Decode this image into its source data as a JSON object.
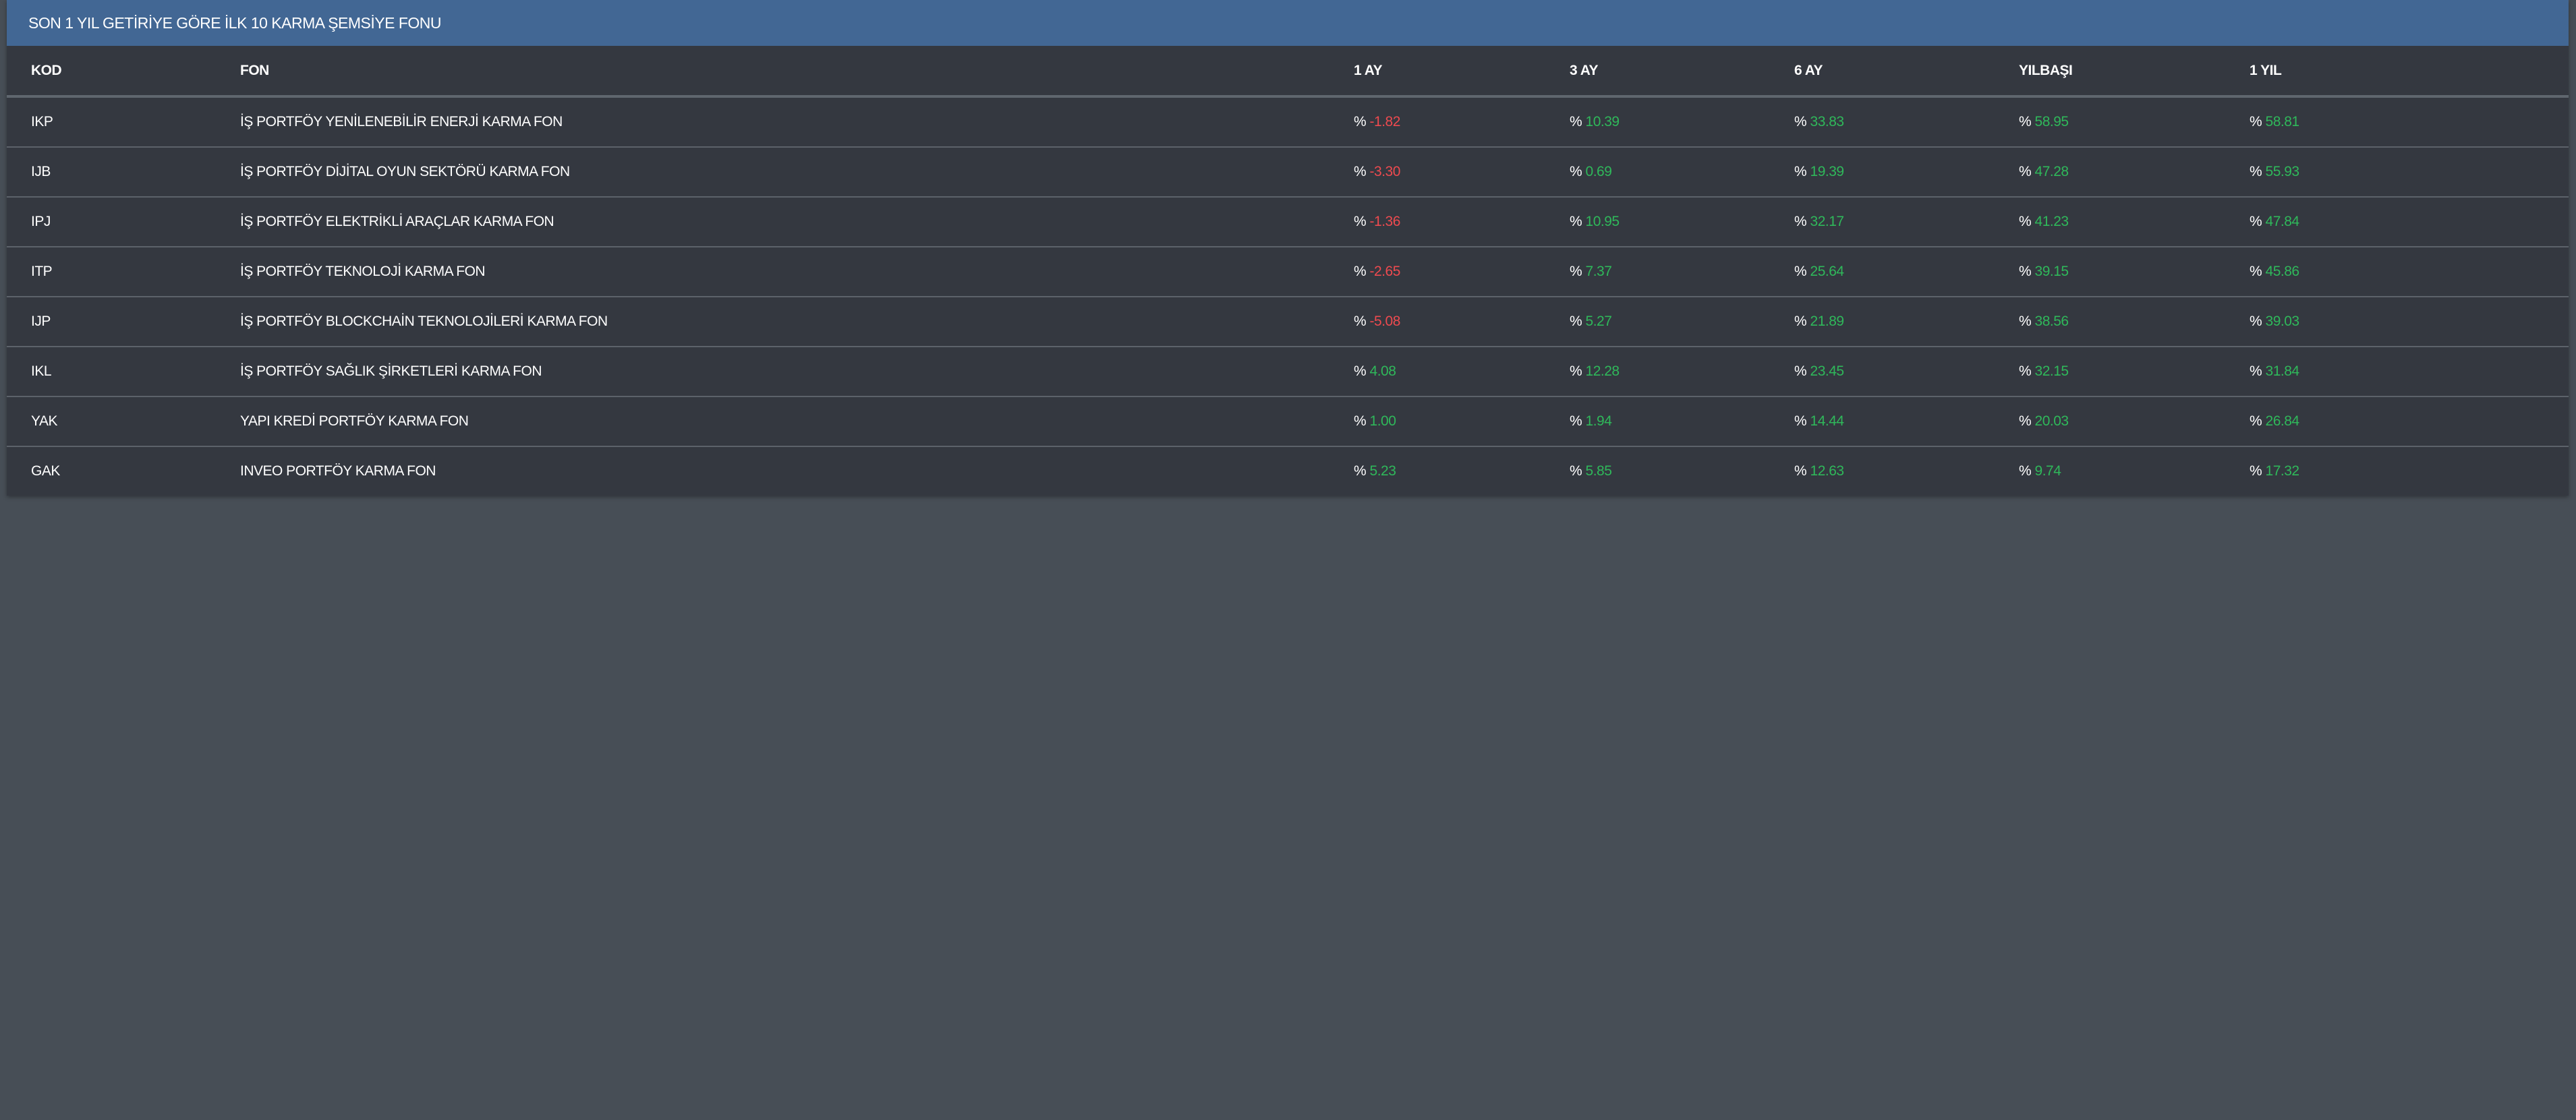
{
  "title": "SON 1 YIL GETİRİYE GÖRE İLK 10 KARMA ŞEMSİYE FONU",
  "columns": [
    "KOD",
    "FON",
    "1 AY",
    "3 AY",
    "6 AY",
    "YILBAŞI",
    "1 YIL"
  ],
  "percent_symbol": "%",
  "colors": {
    "header_bg": "#426794",
    "positive": "#2fb85a",
    "negative": "#ee4a4f"
  },
  "rows": [
    {
      "kod": "IKP",
      "fon": "İŞ PORTFÖY YENİLENEBİLİR ENERJİ KARMA FON",
      "values": [
        "-1.82",
        "10.39",
        "33.83",
        "58.95",
        "58.81"
      ]
    },
    {
      "kod": "IJB",
      "fon": "İŞ PORTFÖY DİJİTAL OYUN SEKTÖRÜ KARMA FON",
      "values": [
        "-3.30",
        "0.69",
        "19.39",
        "47.28",
        "55.93"
      ]
    },
    {
      "kod": "IPJ",
      "fon": "İŞ PORTFÖY ELEKTRİKLİ ARAÇLAR KARMA FON",
      "values": [
        "-1.36",
        "10.95",
        "32.17",
        "41.23",
        "47.84"
      ]
    },
    {
      "kod": "ITP",
      "fon": "İŞ PORTFÖY TEKNOLOJİ KARMA FON",
      "values": [
        "-2.65",
        "7.37",
        "25.64",
        "39.15",
        "45.86"
      ]
    },
    {
      "kod": "IJP",
      "fon": "İŞ PORTFÖY BLOCKCHAİN TEKNOLOJİLERİ KARMA FON",
      "values": [
        "-5.08",
        "5.27",
        "21.89",
        "38.56",
        "39.03"
      ]
    },
    {
      "kod": "IKL",
      "fon": "İŞ PORTFÖY SAĞLIK ŞİRKETLERİ KARMA FON",
      "values": [
        "4.08",
        "12.28",
        "23.45",
        "32.15",
        "31.84"
      ]
    },
    {
      "kod": "YAK",
      "fon": "YAPI KREDİ PORTFÖY KARMA FON",
      "values": [
        "1.00",
        "1.94",
        "14.44",
        "20.03",
        "26.84"
      ]
    },
    {
      "kod": "GAK",
      "fon": "INVEO PORTFÖY KARMA FON",
      "values": [
        "5.23",
        "5.85",
        "12.63",
        "9.74",
        "17.32"
      ]
    }
  ]
}
